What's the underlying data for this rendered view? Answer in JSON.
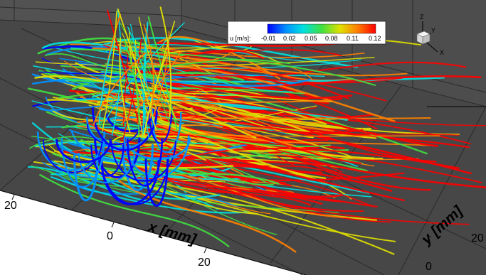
{
  "colorbar": {
    "label": "u [m/s]:",
    "ticks": [
      "-0.01",
      "0.02",
      "0.05",
      "0.08",
      "0.11",
      "0.12"
    ],
    "colors": [
      "#0000ff",
      "#0090ff",
      "#00e0e0",
      "#40e040",
      "#e0e000",
      "#ff8000",
      "#ff0000"
    ]
  },
  "axes": {
    "x_title": "x [mm]",
    "y_title": "y [mm]",
    "x_ticks": [
      "20",
      "0",
      "20"
    ],
    "y_ticks": [
      "20",
      "0"
    ]
  },
  "triad": {
    "z": "Z",
    "y": "Y",
    "x": "X"
  },
  "colors": {
    "floor": "#4b4b4b",
    "wall": "#4f4f4f",
    "grid": "#2a2a2a"
  }
}
